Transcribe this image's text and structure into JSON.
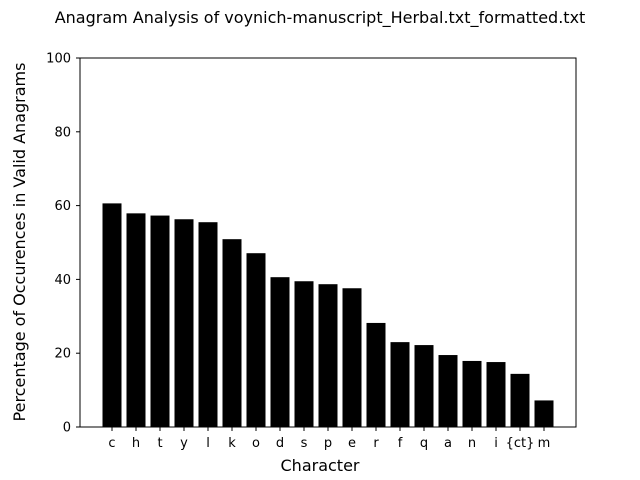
{
  "chart_data": {
    "type": "bar",
    "title": "Anagram Analysis of voynich-manuscript_Herbal.txt_formatted.txt",
    "xlabel": "Character",
    "ylabel": "Percentage of Occurences in Valid Anagrams",
    "categories": [
      "c",
      "h",
      "t",
      "y",
      "l",
      "k",
      "o",
      "d",
      "s",
      "p",
      "e",
      "r",
      "f",
      "q",
      "a",
      "n",
      "i",
      "{ct}",
      "m"
    ],
    "values": [
      60.6,
      57.9,
      57.3,
      56.3,
      55.5,
      50.9,
      47.1,
      40.6,
      39.5,
      38.7,
      37.6,
      28.2,
      23.0,
      22.2,
      19.5,
      17.9,
      17.6,
      14.4,
      7.2
    ],
    "ylim": [
      0,
      100
    ],
    "yticks": [
      0,
      20,
      40,
      60,
      80,
      100
    ],
    "bar_color": "#000000",
    "grid": false,
    "legend": false
  }
}
